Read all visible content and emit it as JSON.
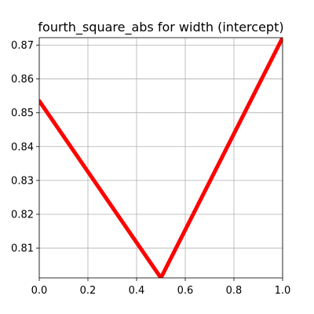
{
  "chart_data": {
    "type": "line",
    "title": "fourth_square_abs for width (intercept)",
    "xlabel": "",
    "ylabel": "",
    "xlim": [
      0.0,
      1.0
    ],
    "ylim": [
      0.8012,
      0.8722
    ],
    "grid": true,
    "x_ticks": [
      0.0,
      0.2,
      0.4,
      0.6,
      0.8,
      1.0
    ],
    "x_tick_labels": [
      "0.0",
      "0.2",
      "0.4",
      "0.6",
      "0.8",
      "1.0"
    ],
    "y_ticks": [
      0.81,
      0.82,
      0.83,
      0.84,
      0.85,
      0.86,
      0.87
    ],
    "y_tick_labels": [
      "0.81",
      "0.82",
      "0.83",
      "0.84",
      "0.85",
      "0.86",
      "0.87"
    ],
    "series": [
      {
        "color": "#ff0000",
        "x": [
          0.0,
          0.5,
          1.0
        ],
        "y": [
          0.8535,
          0.8012,
          0.8722
        ]
      }
    ]
  }
}
